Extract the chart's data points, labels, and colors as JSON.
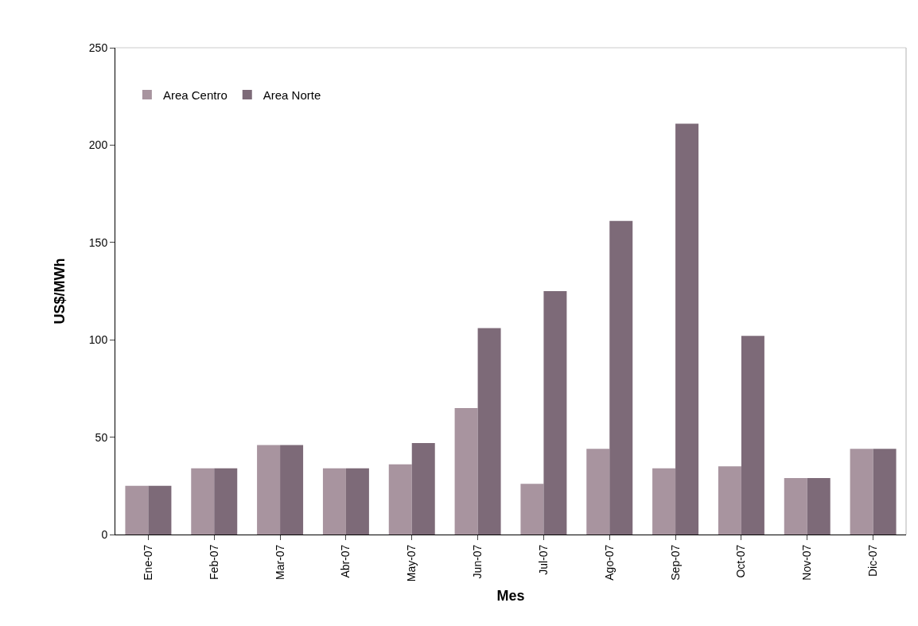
{
  "chart_data": {
    "type": "bar",
    "xlabel": "Mes",
    "ylabel": "US$/MWh",
    "categories": [
      "Ene-07",
      "Feb-07",
      "Mar-07",
      "Abr-07",
      "May-07",
      "Jun-07",
      "Jul-07",
      "Ago-07",
      "Sep-07",
      "Oct-07",
      "Nov-07",
      "Dic-07"
    ],
    "series": [
      {
        "name": "Area Centro",
        "color": "#a8949f",
        "values": [
          25,
          34,
          46,
          34,
          36,
          65,
          26,
          44,
          34,
          35,
          29,
          44
        ]
      },
      {
        "name": "Area Norte",
        "color": "#7d6a78",
        "values": [
          25,
          34,
          46,
          34,
          47,
          106,
          125,
          161,
          211,
          102,
          29,
          44
        ]
      }
    ],
    "ylim": [
      0,
      250
    ],
    "yticks": [
      0,
      50,
      100,
      150,
      200,
      250
    ],
    "grid": false,
    "legend": "top left"
  }
}
